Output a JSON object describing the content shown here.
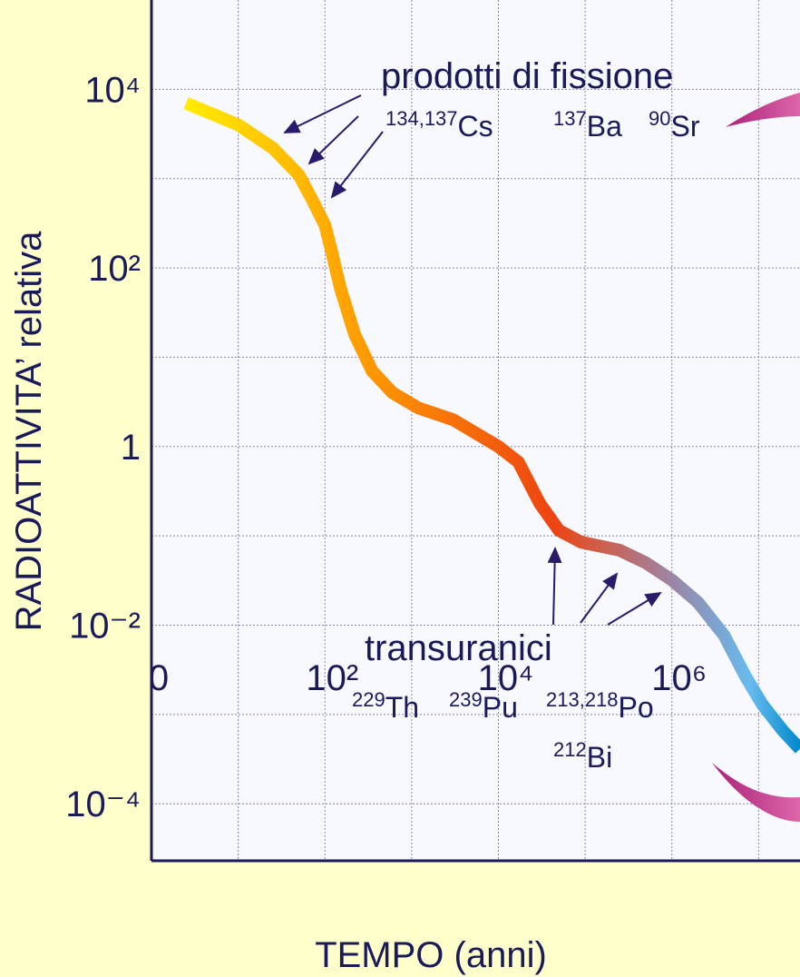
{
  "chart_data": {
    "type": "line",
    "x_label": "TEMPO  (anni)",
    "y_label": "RADIOATTIVITA’ relativa",
    "log_x": true,
    "log_y": true,
    "grid": true,
    "xlim": [
      1,
      30000000
    ],
    "ylim": [
      2.3e-05,
      100000
    ],
    "xticks": [
      {
        "value": 1,
        "label": "0"
      },
      {
        "value": 100,
        "label": "10²"
      },
      {
        "value": 10000,
        "label": "10⁴"
      },
      {
        "value": 1000000,
        "label": "10⁶"
      }
    ],
    "xminor": [
      10,
      1000,
      100000,
      10000000
    ],
    "yticks": [
      {
        "value": 10000,
        "label": "10⁴"
      },
      {
        "value": 100,
        "label": "10²"
      },
      1,
      {
        "value": 0.01,
        "label": "10⁻²"
      },
      {
        "value": 0.0001,
        "label": "10⁻⁴"
      }
    ],
    "yminor": [
      1000,
      10,
      0.1,
      0.001
    ],
    "series": [
      {
        "x": [
          2.5,
          10,
          25,
          50,
          70,
          100,
          120,
          150,
          220,
          350,
          600,
          1200,
          3000,
          10000,
          17000,
          30000,
          50000,
          90000,
          250000,
          500000,
          1000000,
          2000000,
          4000000,
          7000000,
          11000000,
          19000000,
          30000000
        ],
        "values": [
          7000,
          4000,
          2200,
          1100,
          600,
          300,
          150,
          60,
          18,
          7,
          4,
          2.7,
          2,
          1,
          0.67,
          0.23,
          0.115,
          0.085,
          0.069,
          0.05,
          0.032,
          0.018,
          0.0077,
          0.0027,
          0.0013,
          0.00066,
          0.00041
        ]
      }
    ],
    "annotations": {
      "fission": {
        "title": "prodotti di fissione",
        "isotopes": [
          {
            "mass": "134,137",
            "symbol": "Cs"
          },
          {
            "mass": "137",
            "symbol": "Ba"
          },
          {
            "mass": "90",
            "symbol": "Sr"
          }
        ]
      },
      "transuranic": {
        "title": "transuranici",
        "isotopes": [
          {
            "mass": "229",
            "symbol": "Th"
          },
          {
            "mass": "239",
            "symbol": "Pu"
          },
          {
            "mass": "213,218",
            "symbol": "Po"
          },
          {
            "mass": "212",
            "symbol": "Bi"
          }
        ]
      }
    }
  }
}
